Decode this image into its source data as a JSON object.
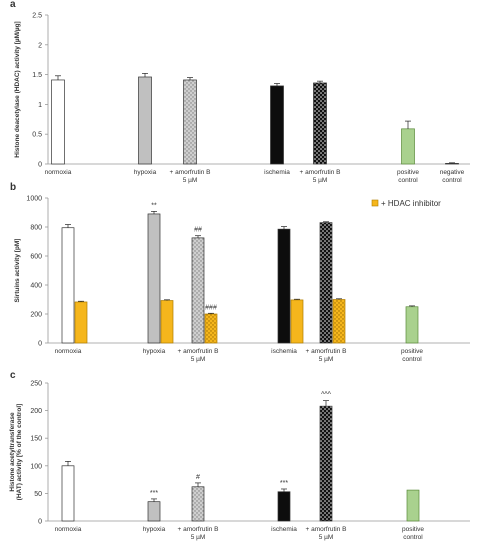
{
  "chart_data": [
    {
      "type": "bar",
      "panel_letter": "a",
      "ylabel": "Histone deacetylase (HDAC) activity [µM/µg]",
      "ylim": [
        0,
        2.5
      ],
      "yticks": [
        0,
        0.5,
        1,
        1.5,
        2,
        2.5
      ],
      "grid": false,
      "categories": [
        [
          "normoxia"
        ],
        [
          "hypoxia"
        ],
        [
          "+ amorfrutin B",
          "5 µM"
        ],
        [
          "ischemia"
        ],
        [
          "+ amorfrutin B",
          "5 µM"
        ],
        [
          "positive",
          "control"
        ],
        [
          "negative",
          "control"
        ]
      ],
      "series": [
        {
          "values": [
            1.41,
            1.46,
            1.41,
            1.31,
            1.36,
            0.59,
            0.01
          ],
          "errors": [
            0.07,
            0.06,
            0.04,
            0.04,
            0.03,
            0.13,
            0.01
          ],
          "fills": [
            "white",
            "gray",
            "gray-dots",
            "black",
            "black-dots",
            "green",
            "white"
          ],
          "annotations": [
            "",
            "",
            "",
            "",
            "",
            "",
            ""
          ]
        }
      ]
    },
    {
      "type": "bar",
      "panel_letter": "b",
      "ylabel": "Sirtuins activity [pM]",
      "ylim": [
        0,
        1000
      ],
      "yticks": [
        0,
        200,
        400,
        600,
        800,
        1000
      ],
      "grid": false,
      "legend": {
        "position": "top-right",
        "entries": [
          "+ HDAC inhibitor"
        ]
      },
      "categories": [
        [
          "normoxia"
        ],
        [
          "hypoxia"
        ],
        [
          "+ amorfrutin B",
          "5 µM"
        ],
        [
          "ischemia"
        ],
        [
          "+ amorfrutin B",
          "5 µM"
        ],
        [
          "positive",
          "control"
        ]
      ],
      "series": [
        {
          "values": [
            795,
            890,
            725,
            785,
            830,
            250
          ],
          "errors": [
            22,
            18,
            15,
            18,
            6,
            6
          ],
          "fills": [
            "white",
            "gray",
            "gray-dots",
            "black",
            "black-dots",
            "green"
          ],
          "annotations": [
            "",
            "**",
            "##",
            "",
            "",
            ""
          ]
        },
        {
          "name": "+ HDAC inhibitor",
          "values": [
            283,
            293,
            200,
            297,
            300,
            null
          ],
          "errors": [
            5,
            5,
            5,
            5,
            5,
            null
          ],
          "fills": [
            "orange",
            "orange",
            "orange-dots",
            "orange",
            "orange-dots",
            null
          ],
          "annotations": [
            "",
            "",
            "###",
            "",
            "",
            ""
          ]
        }
      ]
    },
    {
      "type": "bar",
      "panel_letter": "c",
      "ylabel": "Histone acetyltransferase (HAT) activity [% of the control]",
      "ylim": [
        0,
        250
      ],
      "yticks": [
        0,
        50,
        100,
        150,
        200,
        250
      ],
      "grid": false,
      "categories": [
        [
          "normoxia"
        ],
        [
          "hypoxia"
        ],
        [
          "+ amorfrutin B",
          "5 µM"
        ],
        [
          "ischemia"
        ],
        [
          "+ amorfrutin B",
          "5 µM"
        ],
        [
          "positive",
          "control"
        ]
      ],
      "series": [
        {
          "values": [
            100,
            35,
            62,
            53,
            208,
            56
          ],
          "errors": [
            8,
            5,
            7,
            5,
            10,
            0
          ],
          "fills": [
            "white",
            "gray",
            "gray-dots",
            "black",
            "black-dots",
            "green"
          ],
          "annotations": [
            "",
            "***",
            "#",
            "***",
            "^^^",
            ""
          ]
        }
      ]
    }
  ]
}
